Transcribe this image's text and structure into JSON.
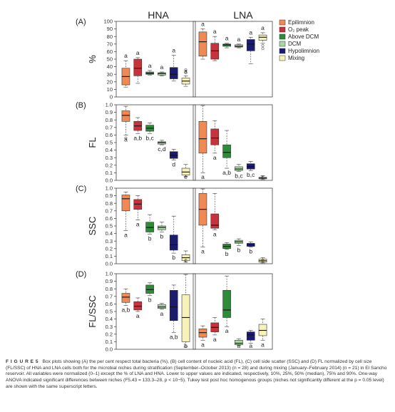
{
  "column_titles": [
    "HNA",
    "LNA"
  ],
  "legend": [
    {
      "label": "Epilimnion",
      "color": "#ef8a55"
    },
    {
      "label": "O₂ peak",
      "color": "#c8323c"
    },
    {
      "label": "Above DCM",
      "color": "#2e8b3a"
    },
    {
      "label": "DCM",
      "color": "#a8d8a0"
    },
    {
      "label": "Hypolimnion",
      "color": "#1c1c6e"
    },
    {
      "label": "Mixing",
      "color": "#f6f2b8"
    }
  ],
  "caption": {
    "label": "F I G U R E 5",
    "text": "Box plots showing (A) the per cent respect total bacteria (%), (B) cell content of nucleic acid (FL), (C) cell side scatter (SSC) and (D) FL normalized by cell size (FL/SSC) of HNA and LNA cells both for the microbial niches during stratification (September–October 2013) (n = 28) and during mixing (January–February 2014) (n = 21) in El Sancho reservoir. All variables were normalized (0–1) except the % of LNA and HNA. Lower to upper values are indicated, respectively, 10%, 25%, 50% (median), 75% and 90%. One-way ANOVA indicated significant differences between niches (F5,43 = 133.3–28, p < 10−5). Tukey test post hoc homogenous groups (niches not significantly different at the p = 0.05 level) are shown with the same superscript letters."
  },
  "chart_data": [
    {
      "panel": "(A)",
      "type": "box",
      "ylabel": "%",
      "ylim": [
        0,
        100
      ],
      "yticks": [
        0,
        10,
        20,
        30,
        40,
        50,
        60,
        70,
        80,
        90,
        100
      ],
      "niches": [
        "Epilimnion",
        "O₂ peak",
        "Above DCM",
        "DCM",
        "Hypolimnion",
        "Mixing"
      ],
      "HNA": [
        {
          "p10": 13,
          "q1": 16,
          "med": 27,
          "q3": 38,
          "p90": 48,
          "letter": "a"
        },
        {
          "p10": 18,
          "q1": 28,
          "med": 38,
          "q3": 50,
          "p90": 52,
          "letter": "a"
        },
        {
          "p10": 29,
          "q1": 30,
          "med": 31,
          "q3": 33,
          "p90": 35,
          "letter": "a"
        },
        {
          "p10": 28,
          "q1": 29,
          "med": 31,
          "q3": 32,
          "p90": 33,
          "letter": "a"
        },
        {
          "p10": 21,
          "q1": 24,
          "med": 30,
          "q3": 39,
          "p90": 55,
          "letter": "a"
        },
        {
          "p10": 14,
          "q1": 17,
          "med": 21,
          "q3": 25,
          "p90": 28,
          "letter": "a",
          "outliers": [
            32,
            36
          ]
        }
      ],
      "LNA": [
        {
          "p10": 50,
          "q1": 54,
          "med": 73,
          "q3": 86,
          "p90": 90,
          "letter": "a"
        },
        {
          "p10": 48,
          "q1": 50,
          "med": 61,
          "q3": 71,
          "p90": 80,
          "letter": "a"
        },
        {
          "p10": 65,
          "q1": 67,
          "med": 69,
          "q3": 70,
          "p90": 71,
          "letter": "a"
        },
        {
          "p10": 65,
          "q1": 66,
          "med": 67,
          "q3": 69,
          "p90": 70,
          "letter": "a"
        },
        {
          "p10": 44,
          "q1": 61,
          "med": 70,
          "q3": 76,
          "p90": 79,
          "letter": "a"
        },
        {
          "p10": 71,
          "q1": 75,
          "med": 79,
          "q3": 82,
          "p90": 85,
          "letter": "a",
          "outliers": [
            64,
            68
          ]
        }
      ]
    },
    {
      "panel": "(B)",
      "type": "box",
      "ylabel": "FL",
      "ylim": [
        0,
        1
      ],
      "yticks": [
        0,
        0.1,
        0.2,
        0.3,
        0.4,
        0.5,
        0.6,
        0.7,
        0.8,
        0.9,
        1.0
      ],
      "niches": [
        "Epilimnion",
        "O₂ peak",
        "Above DCM",
        "DCM",
        "Hypolimnion",
        "Mixing"
      ],
      "HNA": [
        {
          "p10": 0.6,
          "q1": 0.78,
          "med": 0.86,
          "q3": 0.92,
          "p90": 0.98,
          "letter": "a",
          "outliers": [
            0.56
          ]
        },
        {
          "p10": 0.62,
          "q1": 0.66,
          "med": 0.72,
          "q3": 0.78,
          "p90": 0.83,
          "letter": "a,b"
        },
        {
          "p10": 0.62,
          "q1": 0.65,
          "med": 0.69,
          "q3": 0.73,
          "p90": 0.76,
          "letter": "b,c"
        },
        {
          "p10": 0.47,
          "q1": 0.48,
          "med": 0.5,
          "q3": 0.51,
          "p90": 0.53,
          "letter": "c,d"
        },
        {
          "p10": 0.27,
          "q1": 0.29,
          "med": 0.33,
          "q3": 0.38,
          "p90": 0.41,
          "letter": "d"
        },
        {
          "p10": 0.05,
          "q1": 0.07,
          "med": 0.11,
          "q3": 0.16,
          "p90": 0.21,
          "letter": "e"
        }
      ],
      "LNA": [
        {
          "p10": 0.1,
          "q1": 0.36,
          "med": 0.55,
          "q3": 0.78,
          "p90": 0.99,
          "letter": "a"
        },
        {
          "p10": 0.36,
          "q1": 0.47,
          "med": 0.56,
          "q3": 0.68,
          "p90": 0.79,
          "letter": "a"
        },
        {
          "p10": 0.16,
          "q1": 0.3,
          "med": 0.37,
          "q3": 0.47,
          "p90": 0.66,
          "letter": "a,b"
        },
        {
          "p10": 0.12,
          "q1": 0.13,
          "med": 0.15,
          "q3": 0.18,
          "p90": 0.21,
          "letter": "b,c"
        },
        {
          "p10": 0.13,
          "q1": 0.15,
          "med": 0.18,
          "q3": 0.22,
          "p90": 0.25,
          "letter": "b,c"
        },
        {
          "p10": 0.01,
          "q1": 0.02,
          "med": 0.03,
          "q3": 0.04,
          "p90": 0.06,
          "letter": "c"
        }
      ]
    },
    {
      "panel": "(C)",
      "type": "box",
      "ylabel": "SSC",
      "ylim": [
        0,
        1
      ],
      "yticks": [
        0,
        0.1,
        0.2,
        0.3,
        0.4,
        0.5,
        0.6,
        0.7,
        0.8,
        0.9,
        1.0
      ],
      "niches": [
        "Epilimnion",
        "O₂ peak",
        "Above DCM",
        "DCM",
        "Hypolimnion",
        "Mixing"
      ],
      "HNA": [
        {
          "p10": 0.44,
          "q1": 0.7,
          "med": 0.86,
          "q3": 0.91,
          "p90": 0.95,
          "letter": "a"
        },
        {
          "p10": 0.58,
          "q1": 0.72,
          "med": 0.79,
          "q3": 0.85,
          "p90": 0.9,
          "letter": "a"
        },
        {
          "p10": 0.39,
          "q1": 0.42,
          "med": 0.48,
          "q3": 0.55,
          "p90": 0.65,
          "letter": "b"
        },
        {
          "p10": 0.42,
          "q1": 0.45,
          "med": 0.48,
          "q3": 0.5,
          "p90": 0.55,
          "letter": "b"
        },
        {
          "p10": 0.14,
          "q1": 0.18,
          "med": 0.25,
          "q3": 0.38,
          "p90": 0.63,
          "letter": "b"
        },
        {
          "p10": 0.02,
          "q1": 0.04,
          "med": 0.08,
          "q3": 0.12,
          "p90": 0.17,
          "letter": "c"
        }
      ],
      "LNA": [
        {
          "p10": 0.22,
          "q1": 0.51,
          "med": 0.72,
          "q3": 0.93,
          "p90": 0.99,
          "letter": "a"
        },
        {
          "p10": 0.45,
          "q1": 0.47,
          "med": 0.51,
          "q3": 0.66,
          "p90": 0.93,
          "letter": "a"
        },
        {
          "p10": 0.19,
          "q1": 0.2,
          "med": 0.23,
          "q3": 0.26,
          "p90": 0.28,
          "letter": "b"
        },
        {
          "p10": 0.24,
          "q1": 0.27,
          "med": 0.29,
          "q3": 0.31,
          "p90": 0.33,
          "letter": "b"
        },
        {
          "p10": 0.22,
          "q1": 0.23,
          "med": 0.25,
          "q3": 0.27,
          "p90": 0.29,
          "letter": "b"
        },
        {
          "p10": 0.01,
          "q1": 0.02,
          "med": 0.04,
          "q3": 0.06,
          "p90": 0.08,
          "letter": "c"
        }
      ]
    },
    {
      "panel": "(D)",
      "type": "box",
      "ylabel": "FL/SSC",
      "ylim": [
        0,
        1
      ],
      "yticks": [
        0,
        0.1,
        0.2,
        0.3,
        0.4,
        0.5,
        0.6,
        0.7,
        0.8,
        0.9,
        1.0
      ],
      "niches": [
        "Epilimnion",
        "O₂ peak",
        "Above DCM",
        "DCM",
        "Hypolimnion",
        "Mixing"
      ],
      "HNA": [
        {
          "p10": 0.58,
          "q1": 0.62,
          "med": 0.69,
          "q3": 0.74,
          "p90": 0.8,
          "letter": "a,b"
        },
        {
          "p10": 0.5,
          "q1": 0.52,
          "med": 0.57,
          "q3": 0.63,
          "p90": 0.68,
          "letter": "a"
        },
        {
          "p10": 0.71,
          "q1": 0.74,
          "med": 0.79,
          "q3": 0.85,
          "p90": 0.88,
          "letter": "b"
        },
        {
          "p10": 0.53,
          "q1": 0.54,
          "med": 0.56,
          "q3": 0.59,
          "p90": 0.61,
          "letter": "a"
        },
        {
          "p10": 0.22,
          "q1": 0.38,
          "med": 0.56,
          "q3": 0.78,
          "p90": 0.85,
          "letter": "a,b"
        },
        {
          "p10": 0.03,
          "q1": 0.1,
          "med": 0.42,
          "q3": 0.72,
          "p90": 0.99,
          "letter": "b"
        }
      ],
      "LNA": [
        {
          "p10": 0.12,
          "q1": 0.16,
          "med": 0.22,
          "q3": 0.27,
          "p90": 0.31,
          "letter": "a"
        },
        {
          "p10": 0.19,
          "q1": 0.23,
          "med": 0.29,
          "q3": 0.35,
          "p90": 0.42,
          "letter": "a"
        },
        {
          "p10": 0.3,
          "q1": 0.42,
          "med": 0.52,
          "q3": 0.78,
          "p90": 0.97,
          "letter": "a"
        },
        {
          "p10": 0.05,
          "q1": 0.06,
          "med": 0.08,
          "q3": 0.12,
          "p90": 0.14,
          "letter": "a"
        },
        {
          "p10": 0.08,
          "q1": 0.12,
          "med": 0.19,
          "q3": 0.23,
          "p90": 0.25,
          "letter": "a"
        },
        {
          "p10": 0.12,
          "q1": 0.18,
          "med": 0.25,
          "q3": 0.33,
          "p90": 0.4,
          "letter": "a"
        }
      ]
    }
  ]
}
